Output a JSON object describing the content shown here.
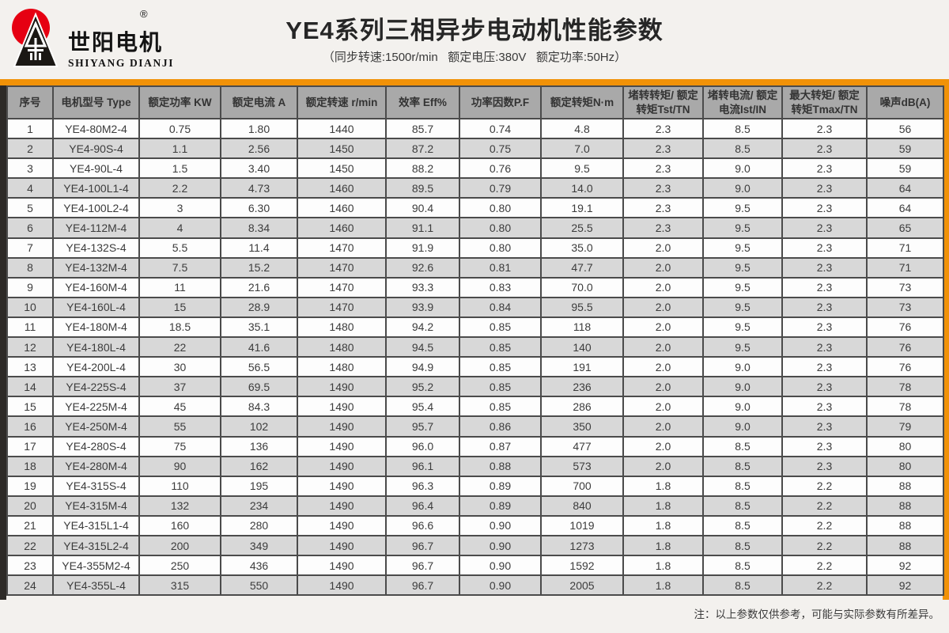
{
  "logo": {
    "brand_cn": "世阳电机",
    "brand_en": "SHIYANG DIANJI",
    "registered_mark": "®"
  },
  "header": {
    "title": "YE4系列三相异步电动机性能参数",
    "subtitle": "（同步转速:1500r/min   额定电压:380V   额定功率:50Hz）"
  },
  "colors": {
    "accent_orange": "#f19208",
    "header_gray": "#a9a9a9",
    "row_alt_gray": "#d8d8d8",
    "logo_red": "#e60012",
    "left_strip_dark": "#2d2a27"
  },
  "table": {
    "columns": [
      "序号",
      "电机型号 Type",
      "额定功率 KW",
      "额定电流 A",
      "额定转速 r/min",
      "效率 Eff%",
      "功率因数P.F",
      "额定转矩N·m",
      "堵转转矩/ 额定转矩Tst/TN",
      "堵转电流/ 额定电流Ist/IN",
      "最大转矩/ 额定转矩Tmax/TN",
      "噪声dB(A)"
    ],
    "rows": [
      [
        "1",
        "YE4-80M2-4",
        "0.75",
        "1.80",
        "1440",
        "85.7",
        "0.74",
        "4.8",
        "2.3",
        "8.5",
        "2.3",
        "56"
      ],
      [
        "2",
        "YE4-90S-4",
        "1.1",
        "2.56",
        "1450",
        "87.2",
        "0.75",
        "7.0",
        "2.3",
        "8.5",
        "2.3",
        "59"
      ],
      [
        "3",
        "YE4-90L-4",
        "1.5",
        "3.40",
        "1450",
        "88.2",
        "0.76",
        "9.5",
        "2.3",
        "9.0",
        "2.3",
        "59"
      ],
      [
        "4",
        "YE4-100L1-4",
        "2.2",
        "4.73",
        "1460",
        "89.5",
        "0.79",
        "14.0",
        "2.3",
        "9.0",
        "2.3",
        "64"
      ],
      [
        "5",
        "YE4-100L2-4",
        "3",
        "6.30",
        "1460",
        "90.4",
        "0.80",
        "19.1",
        "2.3",
        "9.5",
        "2.3",
        "64"
      ],
      [
        "6",
        "YE4-112M-4",
        "4",
        "8.34",
        "1460",
        "91.1",
        "0.80",
        "25.5",
        "2.3",
        "9.5",
        "2.3",
        "65"
      ],
      [
        "7",
        "YE4-132S-4",
        "5.5",
        "11.4",
        "1470",
        "91.9",
        "0.80",
        "35.0",
        "2.0",
        "9.5",
        "2.3",
        "71"
      ],
      [
        "8",
        "YE4-132M-4",
        "7.5",
        "15.2",
        "1470",
        "92.6",
        "0.81",
        "47.7",
        "2.0",
        "9.5",
        "2.3",
        "71"
      ],
      [
        "9",
        "YE4-160M-4",
        "11",
        "21.6",
        "1470",
        "93.3",
        "0.83",
        "70.0",
        "2.0",
        "9.5",
        "2.3",
        "73"
      ],
      [
        "10",
        "YE4-160L-4",
        "15",
        "28.9",
        "1470",
        "93.9",
        "0.84",
        "95.5",
        "2.0",
        "9.5",
        "2.3",
        "73"
      ],
      [
        "11",
        "YE4-180M-4",
        "18.5",
        "35.1",
        "1480",
        "94.2",
        "0.85",
        "118",
        "2.0",
        "9.5",
        "2.3",
        "76"
      ],
      [
        "12",
        "YE4-180L-4",
        "22",
        "41.6",
        "1480",
        "94.5",
        "0.85",
        "140",
        "2.0",
        "9.5",
        "2.3",
        "76"
      ],
      [
        "13",
        "YE4-200L-4",
        "30",
        "56.5",
        "1480",
        "94.9",
        "0.85",
        "191",
        "2.0",
        "9.0",
        "2.3",
        "76"
      ],
      [
        "14",
        "YE4-225S-4",
        "37",
        "69.5",
        "1490",
        "95.2",
        "0.85",
        "236",
        "2.0",
        "9.0",
        "2.3",
        "78"
      ],
      [
        "15",
        "YE4-225M-4",
        "45",
        "84.3",
        "1490",
        "95.4",
        "0.85",
        "286",
        "2.0",
        "9.0",
        "2.3",
        "78"
      ],
      [
        "16",
        "YE4-250M-4",
        "55",
        "102",
        "1490",
        "95.7",
        "0.86",
        "350",
        "2.0",
        "9.0",
        "2.3",
        "79"
      ],
      [
        "17",
        "YE4-280S-4",
        "75",
        "136",
        "1490",
        "96.0",
        "0.87",
        "477",
        "2.0",
        "8.5",
        "2.3",
        "80"
      ],
      [
        "18",
        "YE4-280M-4",
        "90",
        "162",
        "1490",
        "96.1",
        "0.88",
        "573",
        "2.0",
        "8.5",
        "2.3",
        "80"
      ],
      [
        "19",
        "YE4-315S-4",
        "110",
        "195",
        "1490",
        "96.3",
        "0.89",
        "700",
        "1.8",
        "8.5",
        "2.2",
        "88"
      ],
      [
        "20",
        "YE4-315M-4",
        "132",
        "234",
        "1490",
        "96.4",
        "0.89",
        "840",
        "1.8",
        "8.5",
        "2.2",
        "88"
      ],
      [
        "21",
        "YE4-315L1-4",
        "160",
        "280",
        "1490",
        "96.6",
        "0.90",
        "1019",
        "1.8",
        "8.5",
        "2.2",
        "88"
      ],
      [
        "22",
        "YE4-315L2-4",
        "200",
        "349",
        "1490",
        "96.7",
        "0.90",
        "1273",
        "1.8",
        "8.5",
        "2.2",
        "88"
      ],
      [
        "23",
        "YE4-355M2-4",
        "250",
        "436",
        "1490",
        "96.7",
        "0.90",
        "1592",
        "1.8",
        "8.5",
        "2.2",
        "92"
      ],
      [
        "24",
        "YE4-355L-4",
        "315",
        "550",
        "1490",
        "96.7",
        "0.90",
        "2005",
        "1.8",
        "8.5",
        "2.2",
        "92"
      ]
    ]
  },
  "footer": {
    "note": "注：以上参数仅供参考，可能与实际参数有所差异。"
  }
}
